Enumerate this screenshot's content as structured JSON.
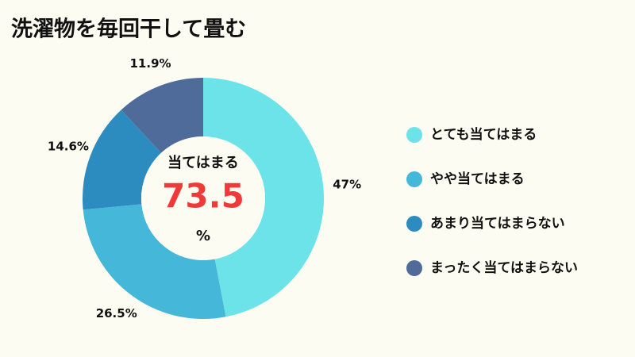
{
  "chart_data": {
    "type": "donut",
    "title": "洗濯物を毎回干して畳む",
    "categories": [
      "とても当てはまる",
      "やや当てはまる",
      "あまり当てはまらない",
      "まったく当てはまらない"
    ],
    "values": [
      47,
      26.5,
      14.6,
      11.9
    ],
    "value_labels": [
      "47%",
      "26.5%",
      "14.6%",
      "11.9%"
    ],
    "colors": [
      "#6be3e8",
      "#45b7d8",
      "#2d8cbf",
      "#4f6b9a"
    ],
    "center_label": "当てはまる",
    "center_value": 73.5,
    "center_unit": "%"
  }
}
